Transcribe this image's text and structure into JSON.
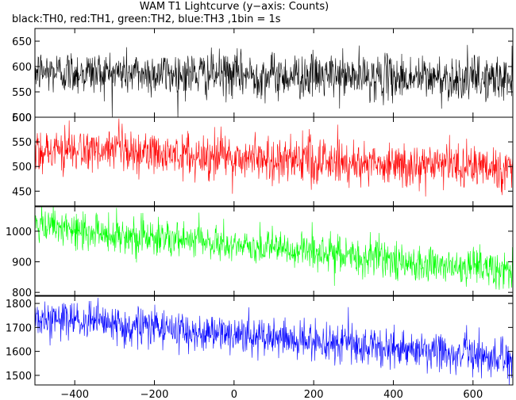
{
  "chart_data": {
    "type": "line",
    "title": "WAM T1 Lightcurve (y−axis: Counts)",
    "subtitle": "black:TH0, red:TH1, green:TH2, blue:TH3 ,1bin = 1s",
    "xlabel": "",
    "ylabel": "",
    "grid": false,
    "legend": "none",
    "x_range": [
      -500,
      700
    ],
    "x_ticks": [
      -400,
      -200,
      0,
      200,
      400,
      600
    ],
    "x_tick_labels": [
      "−400",
      "−200",
      "0",
      "200",
      "400",
      "600"
    ],
    "bin_seconds": 1,
    "panels": [
      {
        "name": "TH0",
        "color": "#000000",
        "ylim": [
          500,
          675
        ],
        "yticks": [
          500,
          550,
          600,
          650
        ],
        "trend_start": 590,
        "trend_end": 575,
        "noise_sd": 22
      },
      {
        "name": "TH1",
        "color": "#ff0000",
        "ylim": [
          420,
          600
        ],
        "yticks": [
          450,
          500,
          550,
          600
        ],
        "trend_start": 535,
        "trend_end": 495,
        "noise_sd": 23
      },
      {
        "name": "TH2",
        "color": "#00ff00",
        "ylim": [
          790,
          1080
        ],
        "yticks": [
          800,
          900,
          1000
        ],
        "trend_start": 1015,
        "trend_end": 870,
        "noise_sd": 30
      },
      {
        "name": "TH3",
        "color": "#0000ff",
        "ylim": [
          1460,
          1830
        ],
        "yticks": [
          1500,
          1600,
          1700,
          1800
        ],
        "trend_start": 1740,
        "trend_end": 1570,
        "noise_sd": 40
      }
    ]
  }
}
